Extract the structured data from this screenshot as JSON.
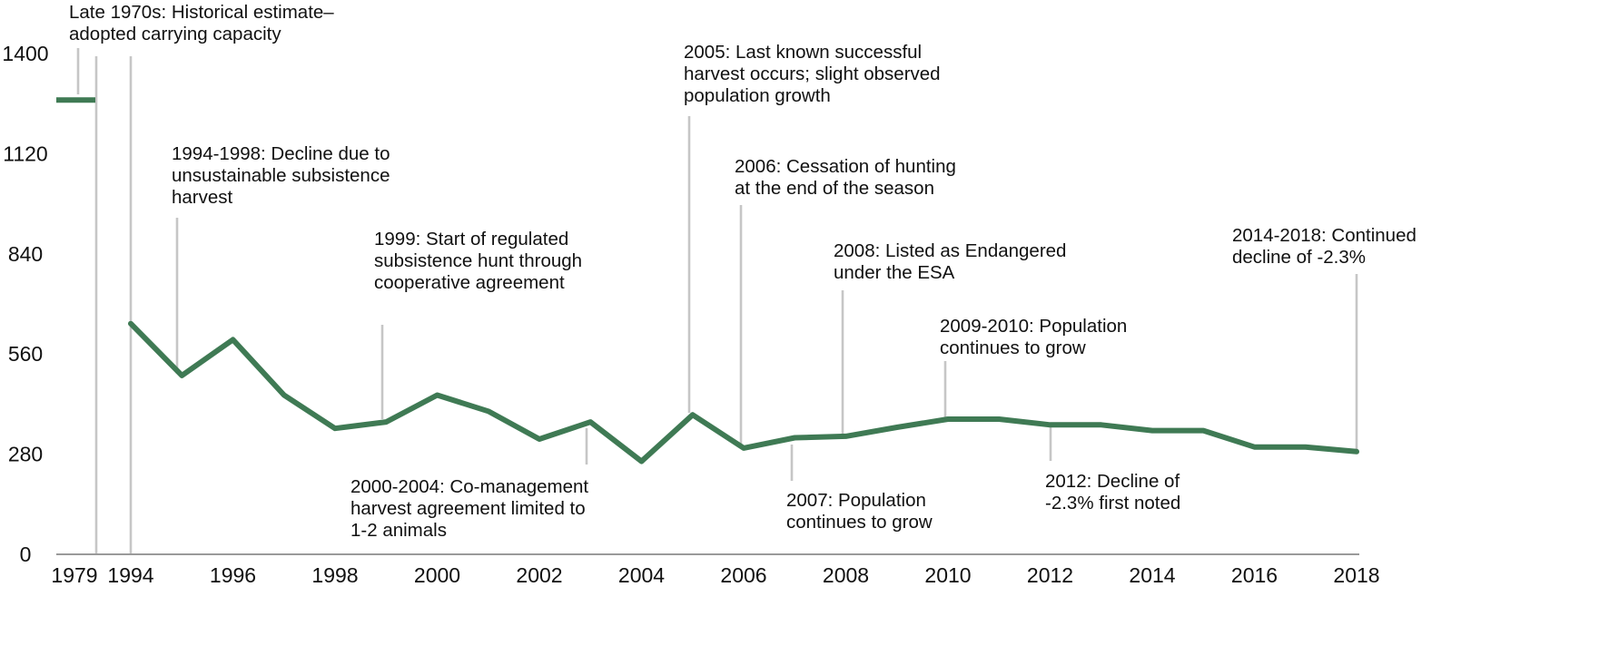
{
  "chart_data": {
    "type": "line",
    "title": "",
    "xlabel": "",
    "ylabel": "",
    "ylim": [
      0,
      1400
    ],
    "yticks": [
      0,
      280,
      560,
      840,
      1120,
      1400
    ],
    "xticks": [
      "1979",
      "1994",
      "1996",
      "1998",
      "2000",
      "2002",
      "2004",
      "2006",
      "2008",
      "2010",
      "2012",
      "2014",
      "2016",
      "2018"
    ],
    "grid": false,
    "legend": "none",
    "line_color": "#3f7a54",
    "leader_color": "#c6c6c6",
    "carrying_capacity": {
      "value": 1270
    },
    "series": [
      {
        "x": [
          1994,
          1995,
          1996,
          1997,
          1998,
          1999,
          2000,
          2001,
          2002,
          2003,
          2004,
          2005,
          2006,
          2007,
          2008,
          2009,
          2010,
          2011,
          2012,
          2013,
          2014,
          2015,
          2016,
          2017,
          2018
        ],
        "y": [
          645,
          500,
          600,
          445,
          352,
          370,
          445,
          400,
          322,
          370,
          260,
          390,
          297,
          326,
          330,
          355,
          378,
          378,
          362,
          362,
          346,
          346,
          300,
          300,
          287
        ]
      }
    ],
    "annotations": [
      {
        "id": "late-1970s",
        "lines": [
          "Late 1970s: Historical estimate–",
          "adopted carrying capacity"
        ]
      },
      {
        "id": "1994-1998",
        "lines": [
          "1994-1998: Decline due to",
          "unsustainable subsistence",
          "harvest"
        ]
      },
      {
        "id": "1999",
        "lines": [
          "1999: Start of regulated",
          "subsistence hunt through",
          "cooperative agreement"
        ]
      },
      {
        "id": "2000-2004",
        "lines": [
          "2000-2004: Co-management",
          "harvest agreement limited to",
          "1-2 animals"
        ]
      },
      {
        "id": "2005",
        "lines": [
          "2005: Last known successful",
          "harvest occurs; slight observed",
          "population growth"
        ]
      },
      {
        "id": "2006",
        "lines": [
          "2006: Cessation of hunting",
          "at the end of the season"
        ]
      },
      {
        "id": "2007",
        "lines": [
          "2007: Population",
          "continues to grow"
        ]
      },
      {
        "id": "2008",
        "lines": [
          "2008: Listed as Endangered",
          "under the ESA"
        ]
      },
      {
        "id": "2009-2010",
        "lines": [
          "2009-2010: Population",
          "continues to grow"
        ]
      },
      {
        "id": "2012",
        "lines": [
          "2012: Decline of",
          "-2.3% first noted"
        ]
      },
      {
        "id": "2014-2018",
        "lines": [
          "2014-2018: Continued",
          "decline of -2.3%"
        ]
      }
    ]
  }
}
